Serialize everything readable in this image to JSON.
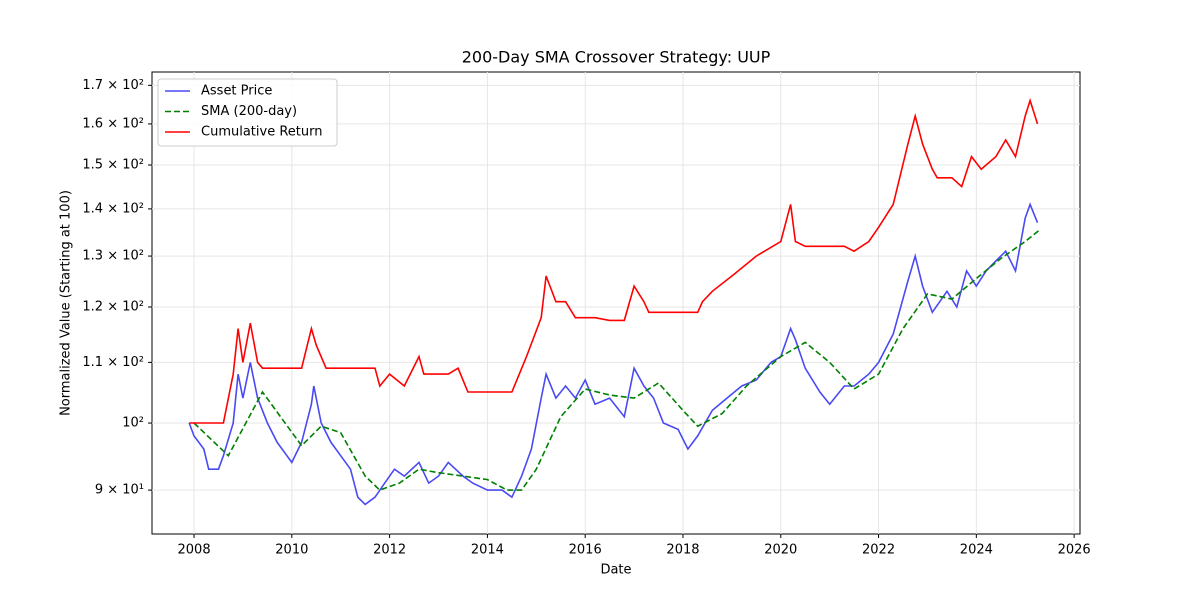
{
  "chart_data": {
    "type": "line",
    "title": "200-Day SMA Crossover Strategy: UUP",
    "x_label": "Date",
    "y_label": "Normalized Value (Starting at 100)",
    "xlim": [
      2007.14,
      2026.12
    ],
    "xticks": [
      2008,
      2010,
      2012,
      2014,
      2016,
      2018,
      2020,
      2022,
      2024,
      2026
    ],
    "ylim": [
      84,
      173.6
    ],
    "y_log": true,
    "yticks": [
      {
        "value": 90,
        "label": "9 × 10¹"
      },
      {
        "value": 100,
        "label": "10²"
      },
      {
        "value": 110,
        "label": "1.1 × 10²"
      },
      {
        "value": 120,
        "label": "1.2 × 10²"
      },
      {
        "value": 130,
        "label": "1.3 × 10²"
      },
      {
        "value": 140,
        "label": "1.4 × 10²"
      },
      {
        "value": 150,
        "label": "1.5 × 10²"
      },
      {
        "value": 160,
        "label": "1.6 × 10²"
      },
      {
        "value": 170,
        "label": "1.7 × 10²"
      }
    ],
    "grid": true,
    "legend": "upper-left",
    "series": [
      {
        "name": "Asset Price",
        "color": "#4a4af5",
        "dash": false,
        "x": [
          2007.9,
          2008.0,
          2008.2,
          2008.3,
          2008.5,
          2008.6,
          2008.8,
          2008.9,
          2009.0,
          2009.15,
          2009.3,
          2009.5,
          2009.7,
          2009.9,
          2010.0,
          2010.2,
          2010.4,
          2010.45,
          2010.6,
          2010.8,
          2011.0,
          2011.2,
          2011.35,
          2011.5,
          2011.7,
          2011.9,
          2012.1,
          2012.3,
          2012.6,
          2012.8,
          2013.0,
          2013.2,
          2013.5,
          2013.7,
          2014.0,
          2014.3,
          2014.5,
          2014.7,
          2014.9,
          2015.1,
          2015.2,
          2015.4,
          2015.6,
          2015.8,
          2016.0,
          2016.2,
          2016.5,
          2016.8,
          2017.0,
          2017.2,
          2017.4,
          2017.6,
          2017.9,
          2018.1,
          2018.3,
          2018.6,
          2018.9,
          2019.2,
          2019.5,
          2019.8,
          2020.0,
          2020.2,
          2020.3,
          2020.5,
          2020.8,
          2021.0,
          2021.3,
          2021.5,
          2021.8,
          2022.0,
          2022.3,
          2022.6,
          2022.75,
          2022.9,
          2023.1,
          2023.4,
          2023.6,
          2023.8,
          2024.0,
          2024.2,
          2024.4,
          2024.6,
          2024.8,
          2025.0,
          2025.1,
          2025.25
        ],
        "values": [
          100,
          98,
          96,
          93,
          93,
          95,
          100,
          108,
          104,
          110,
          104,
          100,
          97,
          95,
          94,
          97,
          103,
          106,
          100,
          97,
          95,
          93,
          89,
          88,
          89,
          91,
          93,
          92,
          94,
          91,
          92,
          94,
          92,
          91,
          90,
          90,
          89,
          92,
          96,
          104,
          108,
          104,
          106,
          104,
          107,
          103,
          104,
          101,
          109,
          106,
          104,
          100,
          99,
          96,
          98,
          102,
          104,
          106,
          107,
          110,
          111,
          116,
          114,
          109,
          105,
          103,
          106,
          106,
          108,
          110,
          115,
          125,
          130,
          124,
          119,
          123,
          120,
          127,
          124,
          127,
          129,
          131,
          127,
          138,
          141,
          137
        ]
      },
      {
        "name": "SMA (200-day)",
        "color": "#008000",
        "dash": true,
        "x": [
          2008.0,
          2008.7,
          2009.4,
          2010.2,
          2010.6,
          2011.0,
          2011.5,
          2011.8,
          2012.2,
          2012.6,
          2013.0,
          2013.5,
          2014.0,
          2014.4,
          2014.7,
          2015.0,
          2015.5,
          2016.0,
          2016.5,
          2017.0,
          2017.5,
          2018.0,
          2018.3,
          2018.8,
          2019.3,
          2020.0,
          2020.5,
          2021.0,
          2021.5,
          2022.0,
          2022.5,
          2023.0,
          2023.5,
          2024.0,
          2024.5,
          2025.0,
          2025.3
        ],
        "values": [
          100,
          95,
          105,
          96.5,
          99.5,
          98.5,
          92,
          90,
          91,
          93,
          92.5,
          92,
          91.5,
          90,
          90,
          93,
          101,
          105.5,
          104.5,
          104,
          106.5,
          102,
          99.5,
          101.5,
          106,
          111,
          113.5,
          110,
          105.5,
          108,
          116,
          122.5,
          121.5,
          125.5,
          129.5,
          133,
          135.5
        ]
      },
      {
        "name": "Cumulative Return",
        "color": "#ff0000",
        "dash": false,
        "x": [
          2007.9,
          2008.6,
          2008.8,
          2008.9,
          2009.0,
          2009.15,
          2009.3,
          2009.4,
          2010.2,
          2010.4,
          2010.5,
          2010.7,
          2011.7,
          2011.8,
          2012.0,
          2012.3,
          2012.6,
          2012.7,
          2013.2,
          2013.4,
          2013.6,
          2014.5,
          2014.8,
          2015.1,
          2015.2,
          2015.4,
          2015.6,
          2015.8,
          2016.2,
          2016.5,
          2016.8,
          2017.0,
          2017.2,
          2017.3,
          2018.3,
          2018.4,
          2018.6,
          2019.0,
          2019.5,
          2020.0,
          2020.2,
          2020.3,
          2020.5,
          2021.3,
          2021.5,
          2021.8,
          2022.0,
          2022.3,
          2022.6,
          2022.75,
          2022.9,
          2023.1,
          2023.2,
          2023.5,
          2023.7,
          2023.9,
          2024.1,
          2024.4,
          2024.6,
          2024.8,
          2025.0,
          2025.1,
          2025.25
        ],
        "values": [
          100,
          100,
          108,
          116,
          110,
          117,
          110,
          109,
          109,
          116,
          113,
          109,
          109,
          106,
          108,
          106,
          111,
          108,
          108,
          109,
          105,
          105,
          111,
          118,
          126,
          121,
          121,
          118,
          118,
          117.5,
          117.5,
          124,
          121,
          119,
          119,
          121,
          123,
          126,
          130,
          133,
          141,
          133,
          132,
          132,
          131,
          133,
          136,
          141,
          155,
          162,
          155,
          149,
          147,
          147,
          145,
          152,
          149,
          152,
          156,
          152,
          162,
          166,
          160
        ]
      }
    ]
  }
}
